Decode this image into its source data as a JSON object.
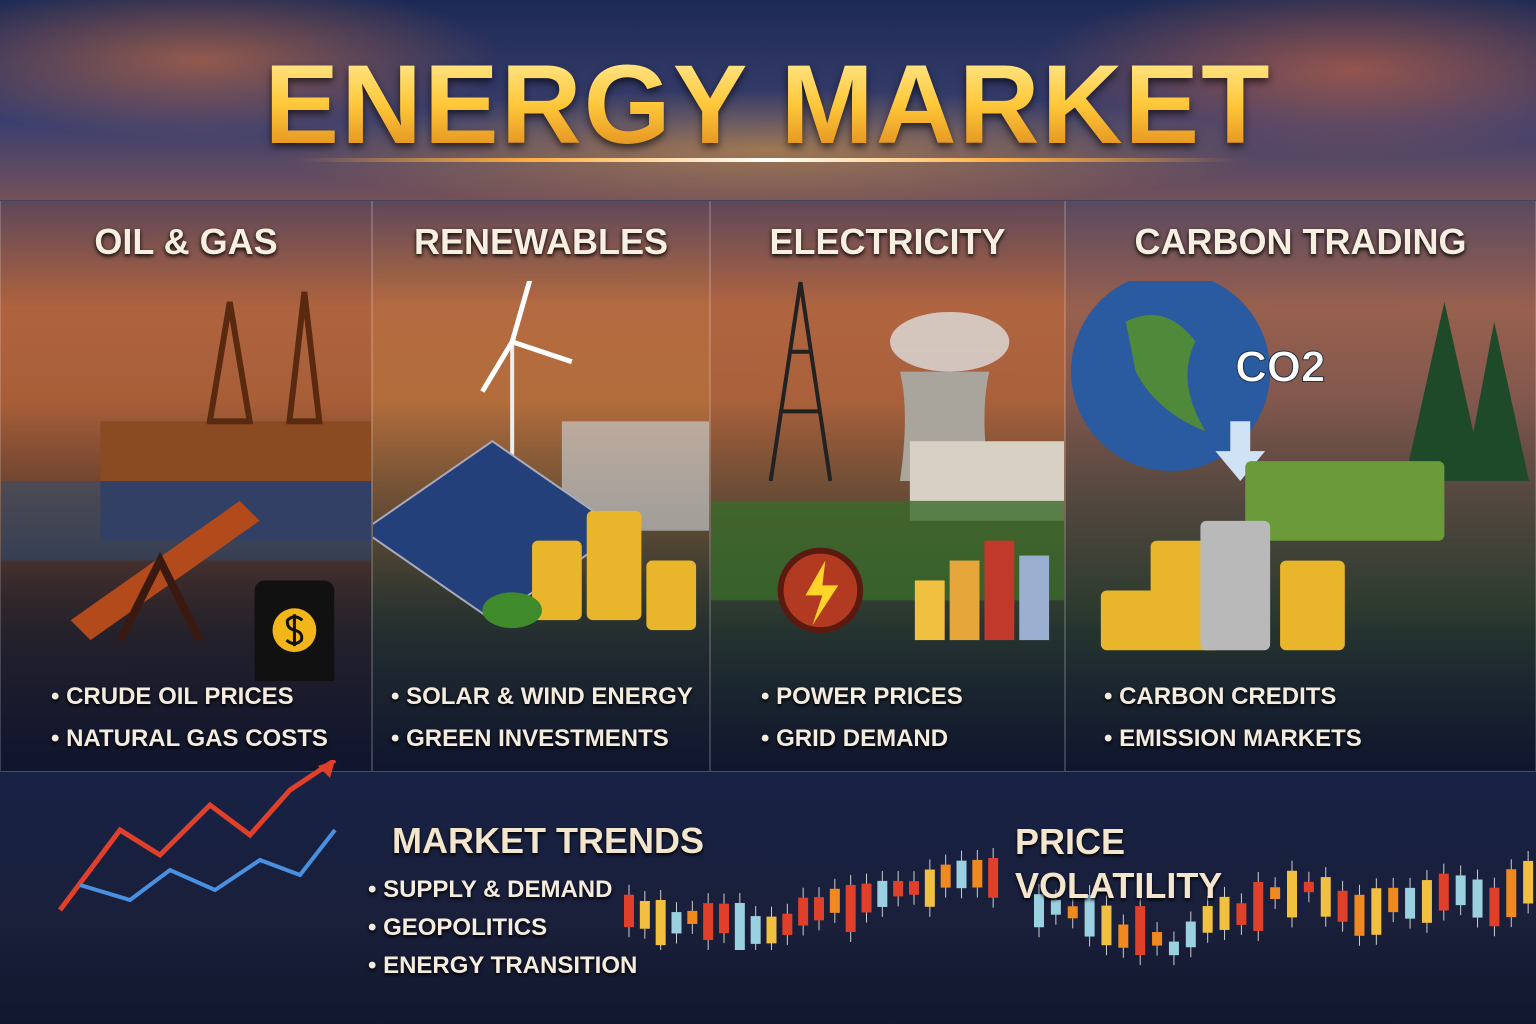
{
  "title": "ENERGY MARKET",
  "sections": [
    {
      "heading": "OIL & GAS",
      "bullets": [
        "CRUDE OIL PRICES",
        "NATURAL GAS COSTS"
      ],
      "icon": "oil-rig-icon"
    },
    {
      "heading": "RENEWABLES",
      "bullets": [
        "SOLAR & WIND ENERGY",
        "GREEN INVESTMENTS"
      ],
      "icon": "wind-turbine-icon"
    },
    {
      "heading": "ELECTRICITY",
      "bullets": [
        "POWER PRICES",
        "GRID DEMAND"
      ],
      "icon": "lightning-icon"
    },
    {
      "heading": "CARBON TRADING",
      "bullets": [
        "CARBON CREDITS",
        "EMISSION MARKETS"
      ],
      "icon": "globe-co2-icon",
      "badge": "CO2"
    }
  ],
  "market_trends": {
    "heading": "MARKET TRENDS",
    "bullets": [
      "SUPPLY & DEMAND",
      "GEOPOLITICS",
      "ENERGY TRANSITION"
    ]
  },
  "price_volatility": {
    "heading_line1": "PRICE",
    "heading_line2": "VOLATILITY"
  },
  "colors": {
    "title_gold": "#ffc83a",
    "trend_red": "#e0402a",
    "trend_blue": "#4a90e0",
    "candle_orange": "#f08a20"
  }
}
